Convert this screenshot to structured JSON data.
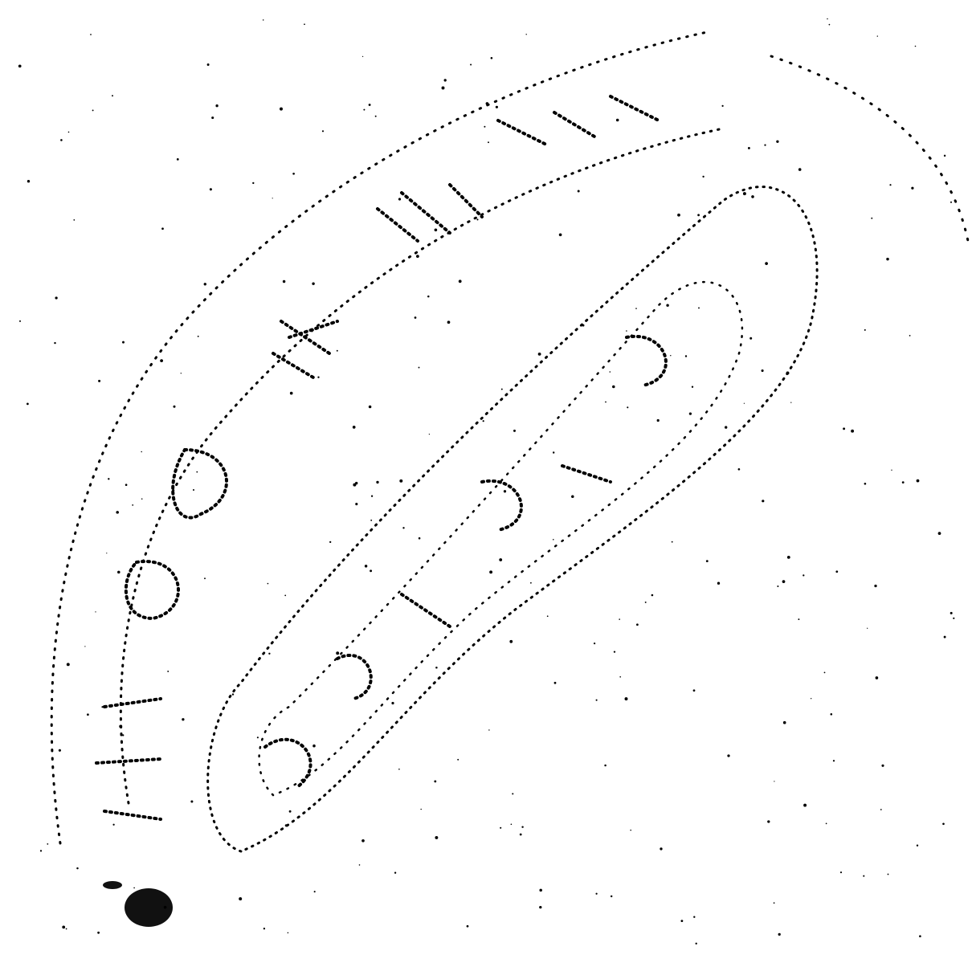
{
  "image": {
    "description_type": "faded dotted stamp imprint scan",
    "ink_color": "#000000",
    "background_color": "#ffffff",
    "stamp_lettering_legible": false
  }
}
